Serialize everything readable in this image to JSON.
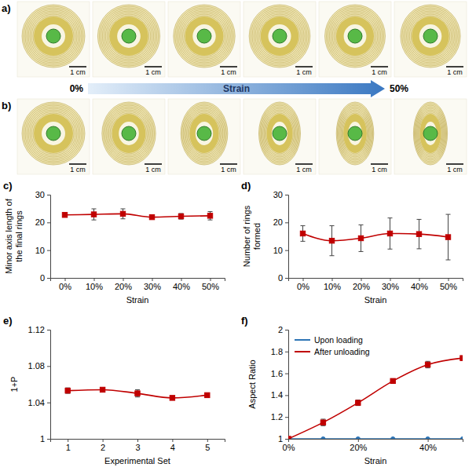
{
  "photo_panels": [
    {
      "label": "a)",
      "scale_bars": [
        "1 cm",
        "1 cm",
        "1 cm",
        "1 cm",
        "1 cm",
        "1 cm"
      ]
    },
    {
      "label": "b)",
      "scale_bars": [
        "1 cm",
        "1 cm",
        "1 cm",
        "1 cm",
        "1 cm",
        "1 cm"
      ]
    }
  ],
  "strain_arrow": {
    "start": "0%",
    "label": "Strain",
    "end": "50%"
  },
  "chart_data": [
    {
      "type": "line",
      "title": "c)",
      "x_label": "Strain",
      "y_label": "Minor axis length of the final rings",
      "categories": [
        "0%",
        "10%",
        "20%",
        "30%",
        "40%",
        "50%"
      ],
      "values": [
        22.7,
        22.9,
        23.1,
        21.9,
        22.2,
        22.4
      ],
      "errors": [
        0.4,
        2.0,
        1.8,
        0.4,
        1.0,
        1.5
      ],
      "color": "#c00000",
      "marker": "square",
      "line_style": "smooth",
      "ylim": [
        0,
        30
      ],
      "yticks": [
        0,
        10,
        20,
        30
      ]
    },
    {
      "type": "line",
      "title": "d)",
      "x_label": "Strain",
      "y_label": "Number of rings formed",
      "categories": [
        "0%",
        "10%",
        "20%",
        "30%",
        "40%",
        "50%"
      ],
      "values": [
        16.0,
        13.4,
        14.3,
        16.0,
        15.8,
        14.7
      ],
      "errors": [
        2.8,
        5.4,
        4.8,
        5.6,
        5.3,
        8.2
      ],
      "color": "#c00000",
      "marker": "square",
      "line_style": "smooth",
      "ylim": [
        0,
        30
      ],
      "yticks": [
        0,
        10,
        20,
        30
      ]
    },
    {
      "type": "line",
      "title": "e)",
      "x_label": "Experimental Set",
      "y_label": "1+P",
      "categories": [
        "1",
        "2",
        "3",
        "4",
        "5"
      ],
      "values": [
        1.053,
        1.054,
        1.05,
        1.045,
        1.048
      ],
      "errors": [
        0.003,
        0.002,
        0.004,
        0.002,
        0.002
      ],
      "color": "#c00000",
      "marker": "square",
      "line_style": "smooth",
      "ylim": [
        1,
        1.12
      ],
      "yticks": [
        1,
        1.04,
        1.08,
        1.12
      ]
    },
    {
      "type": "line",
      "title": "f)",
      "x_label": "Strain",
      "y_label": "Aspect Ratio",
      "x": [
        0,
        10,
        20,
        30,
        40,
        50
      ],
      "xlim": [
        0,
        50
      ],
      "xticks": [
        {
          "value": 0,
          "label": "0%"
        },
        {
          "value": 20,
          "label": "20%"
        },
        {
          "value": 40,
          "label": "40%"
        }
      ],
      "ylim": [
        1,
        2
      ],
      "yticks": [
        1,
        1.2,
        1.4,
        1.6,
        1.8,
        2
      ],
      "legend": "upper left",
      "series": [
        {
          "name": "Upon loading",
          "color": "#2e75b6",
          "marker": "circle",
          "line_style": "smooth",
          "values": [
            1,
            1,
            1,
            1,
            1,
            1
          ]
        },
        {
          "name": "After unloading",
          "color": "#c00000",
          "marker": "square",
          "line_style": "smooth",
          "values": [
            1,
            1.15,
            1.33,
            1.53,
            1.68,
            1.74
          ],
          "errors": [
            0,
            0.03,
            0.025,
            0.02,
            0.03,
            0.015
          ]
        }
      ]
    }
  ]
}
